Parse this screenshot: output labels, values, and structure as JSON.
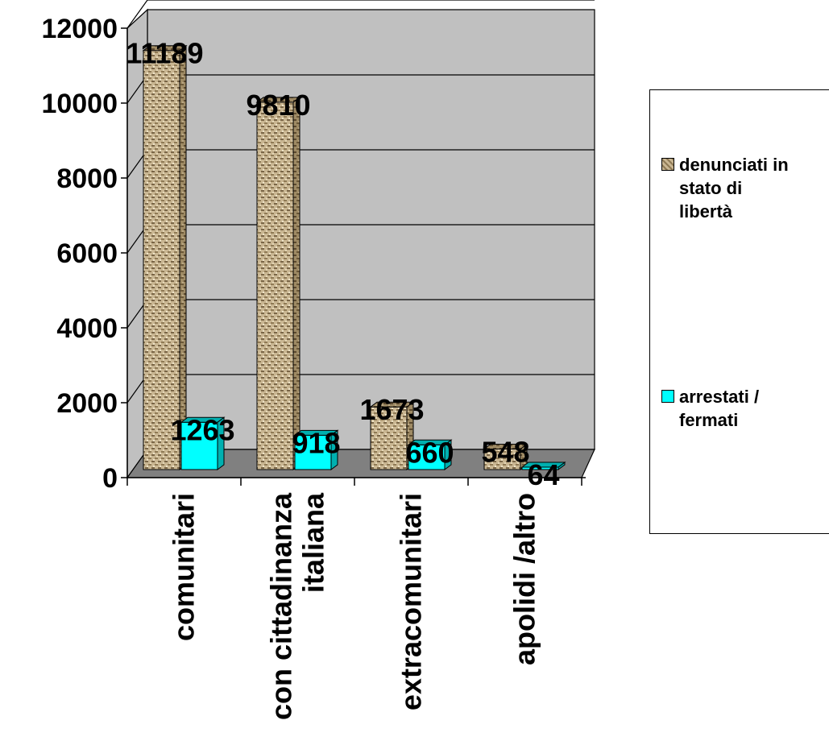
{
  "chart_data": {
    "type": "bar",
    "title": "",
    "xlabel": "",
    "ylabel": "",
    "ylim": [
      0,
      12000
    ],
    "yticks": [
      "0",
      "2000",
      "4000",
      "6000",
      "8000",
      "10000",
      "12000"
    ],
    "ytick_values": [
      0,
      2000,
      4000,
      6000,
      8000,
      10000,
      12000
    ],
    "categories": [
      "comunitari",
      "con cittadinanza italiana",
      "extracomunitari",
      "apolidi /altro"
    ],
    "category_lines": [
      [
        "comunitari"
      ],
      [
        "con cittadinanza",
        "italiana"
      ],
      [
        "extracomunitari"
      ],
      [
        "apolidi /altro"
      ]
    ],
    "series": [
      {
        "name": "denunciati in stato di libertà",
        "values": [
          11189,
          9810,
          1673,
          548
        ],
        "labels": [
          "11189",
          "9810",
          "1673",
          "548"
        ],
        "color": "#c8b48e",
        "legend_lines": [
          "denunciati in",
          "stato di",
          "libertà"
        ]
      },
      {
        "name": "arrestati / fermati",
        "values": [
          1263,
          918,
          660,
          64
        ],
        "labels": [
          "1263",
          "918",
          "660",
          "64"
        ],
        "color": "#00ffff",
        "legend_lines": [
          "arrestati /",
          "fermati"
        ]
      }
    ],
    "grid": true,
    "legend": "right",
    "colors": {
      "wall": "#c0c0c0",
      "floor": "#808080",
      "grid": "#000000"
    }
  }
}
